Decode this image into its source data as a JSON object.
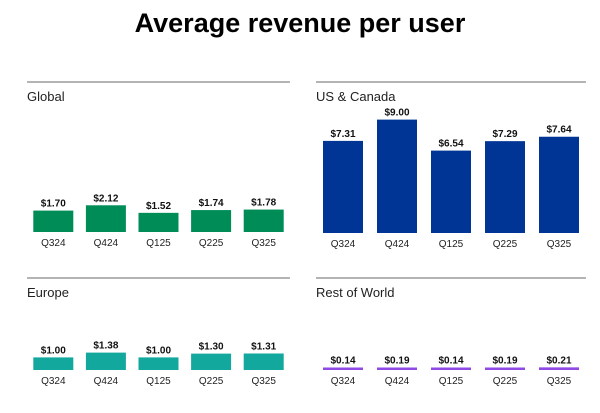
{
  "title": "Average revenue per user",
  "chart_data": [
    {
      "type": "bar",
      "title": "Global",
      "categories": [
        "Q324",
        "Q424",
        "Q125",
        "Q225",
        "Q325"
      ],
      "values": [
        1.7,
        2.12,
        1.52,
        1.74,
        1.78
      ],
      "labels": [
        "$1.70",
        "$2.12",
        "$1.52",
        "$1.74",
        "$1.78"
      ],
      "color": "#008c57"
    },
    {
      "type": "bar",
      "title": "US & Canada",
      "categories": [
        "Q324",
        "Q424",
        "Q125",
        "Q225",
        "Q325"
      ],
      "values": [
        7.31,
        9.0,
        6.54,
        7.29,
        7.64
      ],
      "labels": [
        "$7.31",
        "$9.00",
        "$6.54",
        "$7.29",
        "$7.64"
      ],
      "color": "#003595"
    },
    {
      "type": "bar",
      "title": "Europe",
      "categories": [
        "Q324",
        "Q424",
        "Q125",
        "Q225",
        "Q325"
      ],
      "values": [
        1.0,
        1.38,
        1.0,
        1.3,
        1.31
      ],
      "labels": [
        "$1.00",
        "$1.38",
        "$1.00",
        "$1.30",
        "$1.31"
      ],
      "color": "#13a89e"
    },
    {
      "type": "bar",
      "title": "Rest of World",
      "categories": [
        "Q324",
        "Q424",
        "Q125",
        "Q225",
        "Q325"
      ],
      "values": [
        0.14,
        0.19,
        0.14,
        0.19,
        0.21
      ],
      "labels": [
        "$0.14",
        "$0.19",
        "$0.14",
        "$0.19",
        "$0.21"
      ],
      "color": "#8f4ae6"
    }
  ]
}
